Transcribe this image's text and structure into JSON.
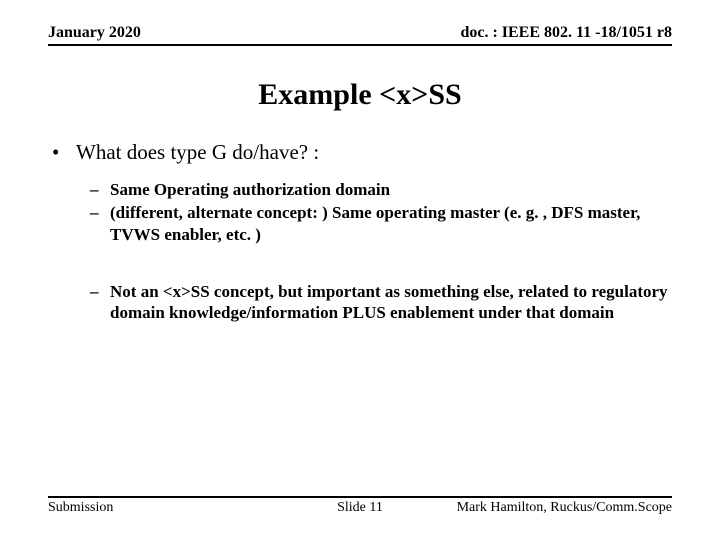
{
  "header": {
    "left": "January 2020",
    "right": "doc. : IEEE 802. 11 -18/1051 r8"
  },
  "title": "Example <x>SS",
  "bullets": {
    "l1": "What does type G do/have? :",
    "l2a": "Same Operating authorization domain",
    "l2b": "(different, alternate concept: ) Same operating master (e. g. , DFS master, TVWS enabler, etc. )",
    "l2c": "Not an <x>SS concept, but important as something else, related to regulatory domain knowledge/information PLUS enablement under that domain"
  },
  "footer": {
    "left": "Submission",
    "center": "Slide 11",
    "right": "Mark Hamilton, Ruckus/Comm.Scope"
  },
  "style": {
    "background_color": "#ffffff",
    "text_color": "#000000",
    "font_family": "Times New Roman",
    "title_fontsize": 30,
    "l1_fontsize": 21,
    "l2_fontsize": 17,
    "header_fontsize": 16,
    "footer_fontsize": 14,
    "rule_color": "#000000",
    "rule_width": 2
  }
}
